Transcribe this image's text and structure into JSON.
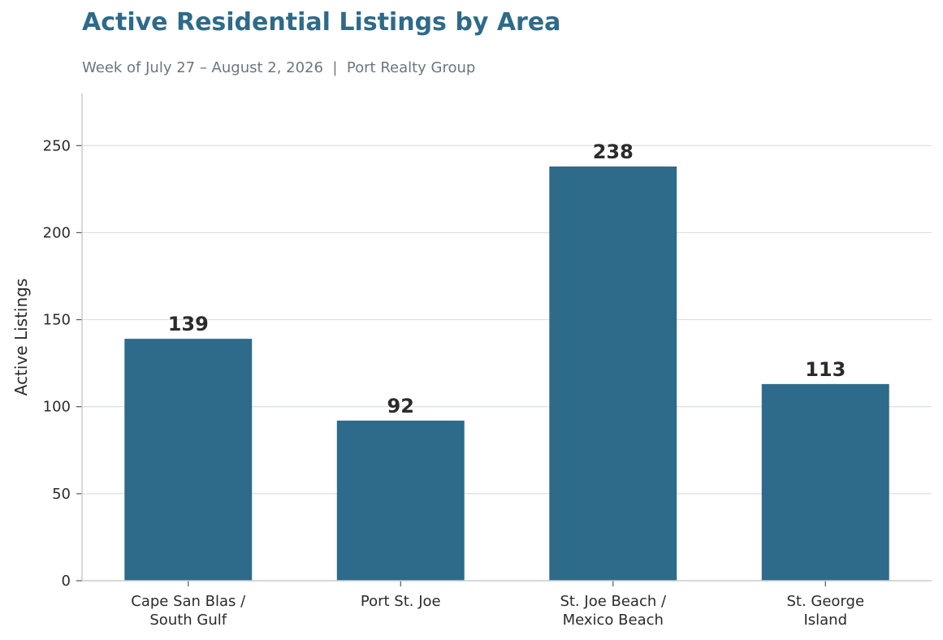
{
  "chart_data": {
    "type": "bar",
    "title": "Active Residential Listings by Area",
    "subtitle": "Week of July 27 – August 2, 2026  |  Port Realty Group",
    "xlabel": "",
    "ylabel": "Active Listings",
    "categories": [
      "Cape San Blas /\nSouth Gulf",
      "Port St. Joe",
      "St. Joe Beach /\nMexico Beach",
      "St. George\nIsland"
    ],
    "values": [
      139,
      92,
      238,
      113
    ],
    "ylim": [
      0,
      280
    ],
    "yticks": [
      0,
      50,
      100,
      150,
      200,
      250
    ],
    "grid": "horizontal",
    "bar_color": "#2e6a8a",
    "title_color": "#2e6a8a"
  }
}
